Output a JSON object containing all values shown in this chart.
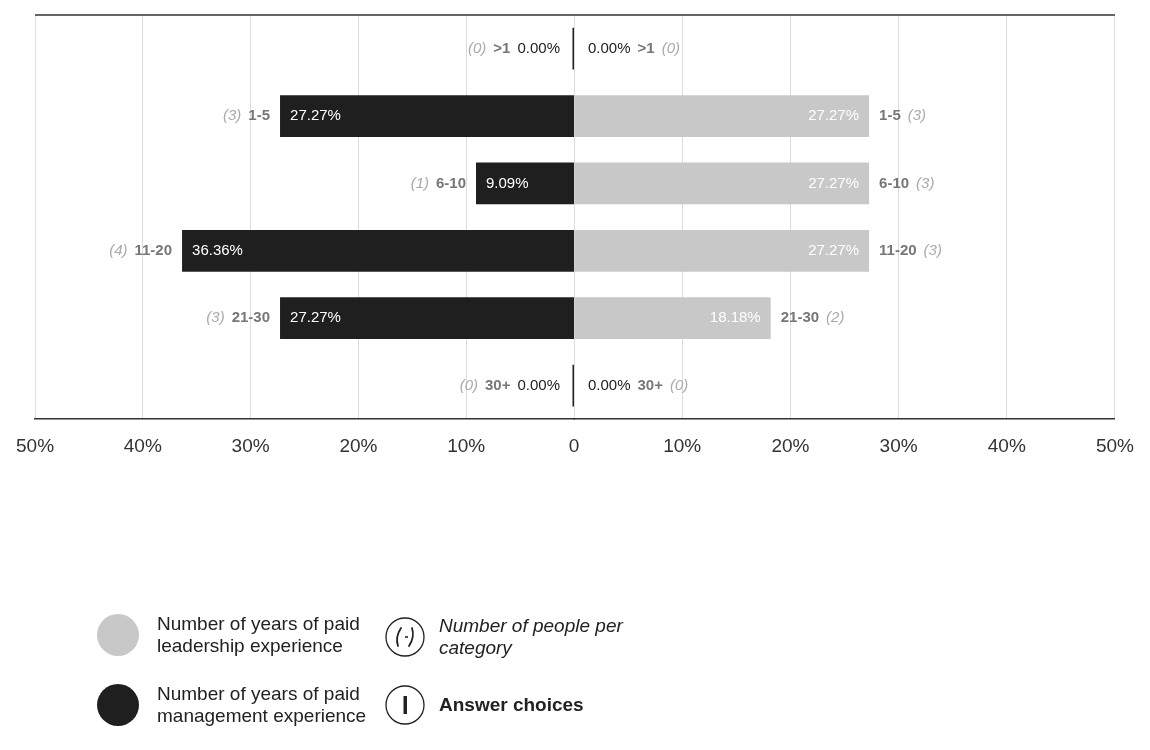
{
  "chart_data": [
    {
      "type": "bar",
      "orientation": "horizontal",
      "categories": [
        ">1",
        "1-5",
        "6-10",
        "11-20",
        "21-30",
        "30+"
      ],
      "series": [
        {
          "name": "Number of years of paid management experience",
          "color": "#1f1f1f",
          "values": [
            0,
            27.27,
            9.09,
            36.36,
            27.27,
            0
          ],
          "value_labels": [
            "0.00%",
            "27.27%",
            "9.09%",
            "36.36%",
            "27.27%",
            "0.00%"
          ]
        }
      ],
      "xlim": [
        50,
        0
      ],
      "xticks": [
        {
          "value": 50,
          "label": "50%"
        },
        {
          "value": 40,
          "label": "40%"
        },
        {
          "value": 30,
          "label": "30%"
        },
        {
          "value": 20,
          "label": "20%"
        },
        {
          "value": 10,
          "label": "10%"
        }
      ],
      "grid": "x",
      "tick_labels": "x",
      "legend": "bottom left",
      "annotations": [
        "(0)",
        "(3)",
        "(1)",
        "(4)",
        "(3)",
        "(0)"
      ]
    },
    {
      "type": "bar",
      "orientation": "horizontal",
      "categories": [
        ">1",
        "1-5",
        "6-10",
        "11-20",
        "21-30",
        "30+"
      ],
      "series": [
        {
          "name": "Number of years of paid leadership experience",
          "color": "#c8c8c8",
          "values": [
            0,
            27.27,
            27.27,
            27.27,
            18.18,
            0
          ],
          "value_labels": [
            "0.00%",
            "27.27%",
            "27.27%",
            "27.27%",
            "18.18%",
            "0.00%"
          ]
        }
      ],
      "xlim": [
        0,
        50
      ],
      "xticks": [
        0,
        {
          "value": 10,
          "label": "10%"
        },
        {
          "value": 20,
          "label": "20%"
        },
        {
          "value": 30,
          "label": "30%"
        },
        {
          "value": 40,
          "label": "40%"
        },
        {
          "value": 50,
          "label": "50%"
        }
      ],
      "grid": "x",
      "tick_labels": "x",
      "legend": "bottom left",
      "annotations": [
        "Number of people per category",
        "Answer choices",
        "(0)",
        "(3)",
        "(3)",
        "(3)",
        "(2)",
        "(0)"
      ]
    }
  ]
}
